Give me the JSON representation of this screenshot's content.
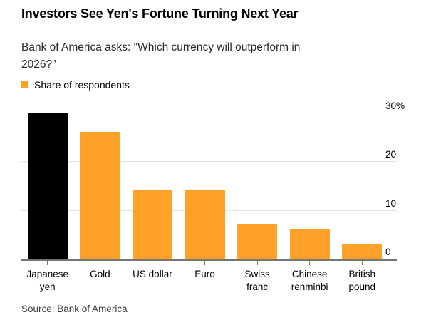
{
  "header": {
    "title": "Investors See Yen's Fortune Turning Next Year",
    "subtitle_line1": "Bank of America asks: \"Which currency will outperform in",
    "subtitle_line2": "2026?\""
  },
  "legend": {
    "label": "Share of respondents"
  },
  "source": {
    "text": "Source: Bank of America"
  },
  "colors": {
    "accent_orange": "#FFA028",
    "highlight_black": "#000000",
    "gridline": "#e3e3e3",
    "baseline": "#757575",
    "text": "#000000",
    "subtitle_text": "#2a2a2a",
    "source_text": "#404040"
  },
  "chart_data": {
    "type": "bar",
    "title": "Investors See Yen's Fortune Turning Next Year",
    "subtitle": "Bank of America asks: \"Which currency will outperform in 2026?\"",
    "series": [
      {
        "name": "Share of respondents",
        "values": [
          30,
          26,
          14,
          14,
          7,
          6,
          3
        ]
      }
    ],
    "categories": [
      "Japanese yen",
      "Gold",
      "US dollar",
      "Euro",
      "Swiss franc",
      "Chinese renminbi",
      "British pound"
    ],
    "values": [
      30,
      26,
      14,
      14,
      7,
      6,
      3
    ],
    "unit": "%",
    "xlabel": "",
    "ylabel": "",
    "ylim": [
      0,
      30
    ],
    "grid": "horizontal",
    "legend_position": "top-left",
    "axis_side": "right",
    "source": "Bank of America",
    "yticks": [
      {
        "value": 30,
        "label": "30%"
      },
      {
        "value": 20,
        "label": "20"
      },
      {
        "value": 10,
        "label": "10"
      },
      {
        "value": 0,
        "label": "0"
      }
    ],
    "bars": [
      {
        "name": "japanese-yen",
        "label_lines": [
          "Japanese",
          "yen"
        ],
        "value": 30,
        "color": "#000000"
      },
      {
        "name": "gold",
        "label_lines": [
          "Gold"
        ],
        "value": 26,
        "color": "#FFA028"
      },
      {
        "name": "us-dollar",
        "label_lines": [
          "US dollar"
        ],
        "value": 14,
        "color": "#FFA028"
      },
      {
        "name": "euro",
        "label_lines": [
          "Euro"
        ],
        "value": 14,
        "color": "#FFA028"
      },
      {
        "name": "swiss-franc",
        "label_lines": [
          "Swiss",
          "franc"
        ],
        "value": 7,
        "color": "#FFA028"
      },
      {
        "name": "chinese-renminbi",
        "label_lines": [
          "Chinese",
          "renminbi"
        ],
        "value": 6,
        "color": "#FFA028"
      },
      {
        "name": "british-pound",
        "label_lines": [
          "British",
          "pound"
        ],
        "value": 3,
        "color": "#FFA028"
      }
    ]
  }
}
